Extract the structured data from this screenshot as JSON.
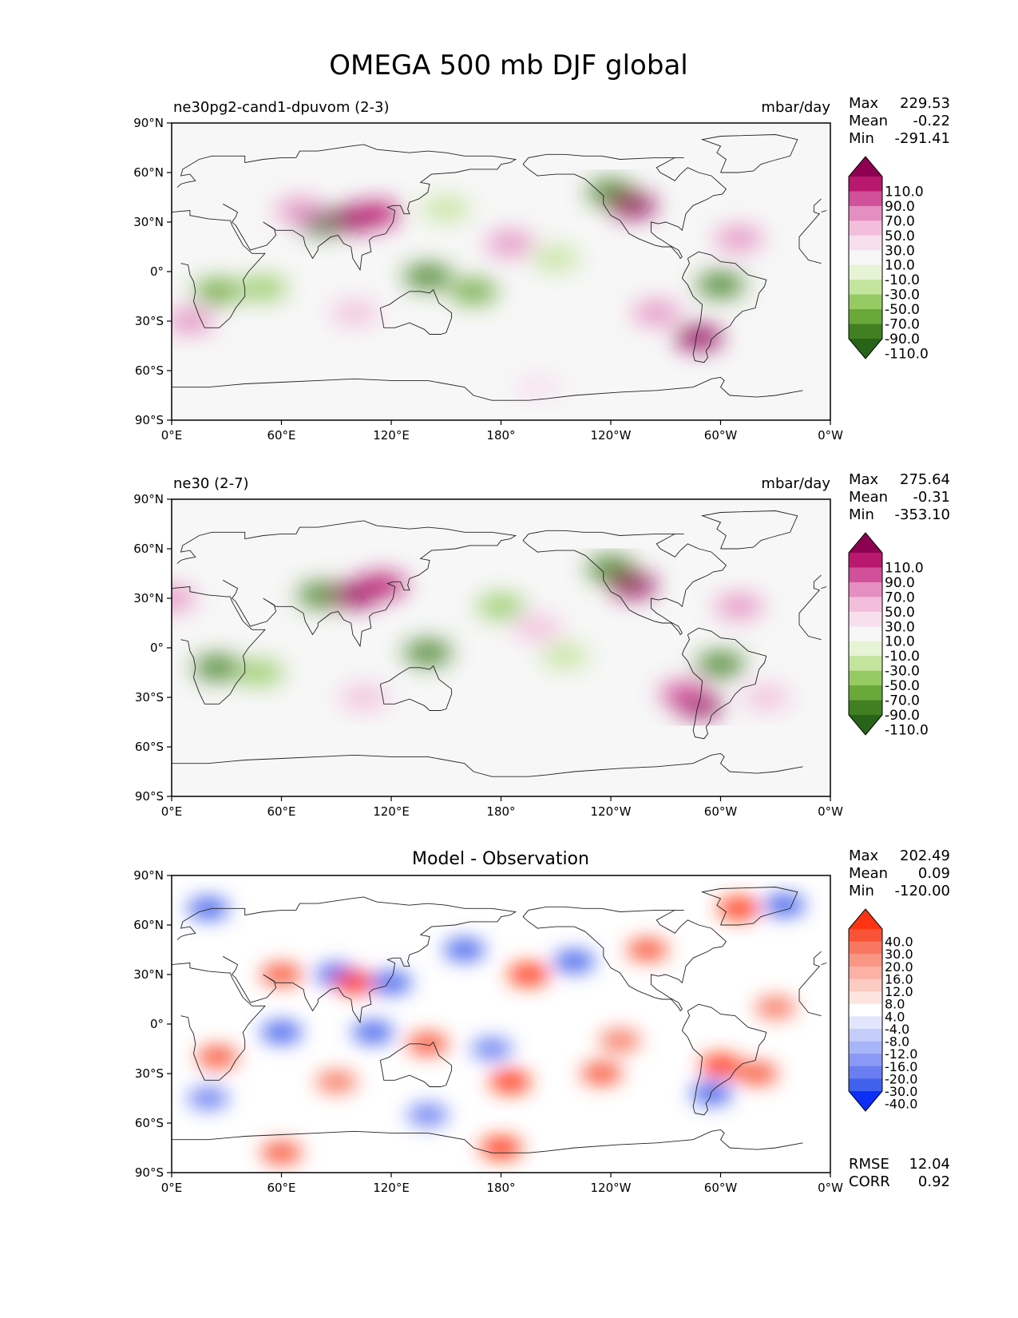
{
  "title": "OMEGA 500 mb DJF global",
  "chart_data": [
    {
      "type": "heatmap",
      "subtitle_left": "ne30pg2-cand1-dpuvom (2-3)",
      "subtitle_right": "mbar/day",
      "stats": [
        {
          "label": "Max",
          "value": "229.53"
        },
        {
          "label": "Mean",
          "value": "-0.22"
        },
        {
          "label": "Min",
          "value": "-291.41"
        }
      ],
      "colorbar": {
        "levels": [
          "110.0",
          "90.0",
          "70.0",
          "50.0",
          "30.0",
          "10.0",
          "-10.0",
          "-30.0",
          "-50.0",
          "-70.0",
          "-90.0",
          "-110.0"
        ],
        "colors": [
          "#8e0152",
          "#b8186d",
          "#d0509a",
          "#e58ec2",
          "#f2bedc",
          "#f8dfee",
          "#f7f7f7",
          "#e6f3d4",
          "#c3e49c",
          "#95cb62",
          "#6aa83a",
          "#427f22",
          "#276419"
        ]
      },
      "xlim": [
        0,
        360
      ],
      "ylim": [
        -90,
        90
      ],
      "xticks": [
        "0°E",
        "60°E",
        "120°E",
        "180°",
        "120°W",
        "60°W",
        "0°W"
      ],
      "yticks": [
        "90°N",
        "60°N",
        "30°N",
        "0°",
        "30°S",
        "60°S",
        "90°S"
      ],
      "features": [
        {
          "lon": 82,
          "lat": 30,
          "value": -120
        },
        {
          "lon": 100,
          "lat": 32,
          "value": 130
        },
        {
          "lon": 112,
          "lat": 35,
          "value": 90
        },
        {
          "lon": 70,
          "lat": 37,
          "value": 60
        },
        {
          "lon": 25,
          "lat": -12,
          "value": -90
        },
        {
          "lon": 50,
          "lat": -10,
          "value": -70
        },
        {
          "lon": 140,
          "lat": -3,
          "value": -100
        },
        {
          "lon": 165,
          "lat": -12,
          "value": -80
        },
        {
          "lon": 240,
          "lat": 48,
          "value": -110
        },
        {
          "lon": 252,
          "lat": 40,
          "value": 110
        },
        {
          "lon": 300,
          "lat": -8,
          "value": -100
        },
        {
          "lon": 288,
          "lat": -40,
          "value": 150
        },
        {
          "lon": 185,
          "lat": 17,
          "value": 55
        },
        {
          "lon": 150,
          "lat": 38,
          "value": -50
        },
        {
          "lon": 10,
          "lat": -30,
          "value": 60
        },
        {
          "lon": 100,
          "lat": -25,
          "value": 40
        },
        {
          "lon": 265,
          "lat": -25,
          "value": 60
        },
        {
          "lon": 310,
          "lat": 20,
          "value": 60
        },
        {
          "lon": 210,
          "lat": 8,
          "value": -50
        },
        {
          "lon": 200,
          "lat": -70,
          "value": 25
        }
      ]
    },
    {
      "type": "heatmap",
      "subtitle_left": "ne30 (2-7)",
      "subtitle_right": "mbar/day",
      "stats": [
        {
          "label": "Max",
          "value": "275.64"
        },
        {
          "label": "Mean",
          "value": "-0.31"
        },
        {
          "label": "Min",
          "value": "-353.10"
        }
      ],
      "colorbar": {
        "levels": [
          "110.0",
          "90.0",
          "70.0",
          "50.0",
          "30.0",
          "10.0",
          "-10.0",
          "-30.0",
          "-50.0",
          "-70.0",
          "-90.0",
          "-110.0"
        ],
        "colors": [
          "#8e0152",
          "#b8186d",
          "#d0509a",
          "#e58ec2",
          "#f2bedc",
          "#f8dfee",
          "#f7f7f7",
          "#e6f3d4",
          "#c3e49c",
          "#95cb62",
          "#6aa83a",
          "#427f22",
          "#276419"
        ]
      },
      "xlim": [
        0,
        360
      ],
      "ylim": [
        -90,
        90
      ],
      "xticks": [
        "0°E",
        "60°E",
        "120°E",
        "180°",
        "120°W",
        "60°W",
        "0°W"
      ],
      "yticks": [
        "90°N",
        "60°N",
        "30°N",
        "0°",
        "30°S",
        "60°S",
        "90°S"
      ],
      "features": [
        {
          "lon": 82,
          "lat": 32,
          "value": -110
        },
        {
          "lon": 100,
          "lat": 32,
          "value": 140
        },
        {
          "lon": 115,
          "lat": 38,
          "value": 100
        },
        {
          "lon": 25,
          "lat": -12,
          "value": -100
        },
        {
          "lon": 48,
          "lat": -15,
          "value": -60
        },
        {
          "lon": 140,
          "lat": -3,
          "value": -110
        },
        {
          "lon": 240,
          "lat": 48,
          "value": -110
        },
        {
          "lon": 252,
          "lat": 38,
          "value": 120
        },
        {
          "lon": 300,
          "lat": -10,
          "value": -110
        },
        {
          "lon": 288,
          "lat": -35,
          "value": 120
        },
        {
          "lon": 280,
          "lat": -28,
          "value": 70
        },
        {
          "lon": 180,
          "lat": 25,
          "value": -60
        },
        {
          "lon": 200,
          "lat": 12,
          "value": 40
        },
        {
          "lon": 105,
          "lat": -30,
          "value": 40
        },
        {
          "lon": 325,
          "lat": -30,
          "value": 40
        },
        {
          "lon": 310,
          "lat": 25,
          "value": 60
        },
        {
          "lon": 215,
          "lat": -5,
          "value": -50
        },
        {
          "lon": 0,
          "lat": 30,
          "value": 50
        }
      ]
    },
    {
      "type": "heatmap",
      "title": "Model - Observation",
      "stats": [
        {
          "label": "Max",
          "value": "202.49"
        },
        {
          "label": "Mean",
          "value": "0.09"
        },
        {
          "label": "Min",
          "value": "-120.00"
        }
      ],
      "metrics": [
        {
          "label": "RMSE",
          "value": "12.04"
        },
        {
          "label": "CORR",
          "value": "0.92"
        }
      ],
      "colorbar": {
        "levels": [
          "40.0",
          "30.0",
          "20.0",
          "16.0",
          "12.0",
          "8.0",
          "4.0",
          "-4.0",
          "-8.0",
          "-12.0",
          "-16.0",
          "-20.0",
          "-30.0",
          "-40.0"
        ],
        "colors": [
          "#ff3311",
          "#f85237",
          "#f77760",
          "#fa9684",
          "#fbb1a3",
          "#fccbc2",
          "#fde4df",
          "#ffffff",
          "#e2e6fd",
          "#c5cefb",
          "#a8b4f8",
          "#8a99f5",
          "#6a7ef1",
          "#4160ec",
          "#0b2ff9"
        ]
      },
      "xlim": [
        0,
        360
      ],
      "ylim": [
        -90,
        90
      ],
      "xticks": [
        "0°E",
        "60°E",
        "120°E",
        "180°",
        "120°W",
        "60°W",
        "0°W"
      ],
      "yticks": [
        "90°N",
        "60°N",
        "30°N",
        "0°",
        "30°S",
        "60°S",
        "90°S"
      ],
      "features": [
        {
          "lon": 60,
          "lat": 30,
          "value": 35
        },
        {
          "lon": 90,
          "lat": 30,
          "value": -40
        },
        {
          "lon": 100,
          "lat": 25,
          "value": 40
        },
        {
          "lon": 120,
          "lat": 25,
          "value": -35
        },
        {
          "lon": 160,
          "lat": 45,
          "value": -40
        },
        {
          "lon": 195,
          "lat": 30,
          "value": 40
        },
        {
          "lon": 220,
          "lat": 38,
          "value": -40
        },
        {
          "lon": 260,
          "lat": 45,
          "value": 30
        },
        {
          "lon": 310,
          "lat": 70,
          "value": 40
        },
        {
          "lon": 335,
          "lat": 72,
          "value": -40
        },
        {
          "lon": 20,
          "lat": 70,
          "value": -35
        },
        {
          "lon": 60,
          "lat": -5,
          "value": -40
        },
        {
          "lon": 110,
          "lat": -5,
          "value": -35
        },
        {
          "lon": 175,
          "lat": -15,
          "value": -30
        },
        {
          "lon": 185,
          "lat": -35,
          "value": 40
        },
        {
          "lon": 140,
          "lat": -12,
          "value": 30
        },
        {
          "lon": 25,
          "lat": -20,
          "value": 30
        },
        {
          "lon": 300,
          "lat": -25,
          "value": 40
        },
        {
          "lon": 295,
          "lat": -42,
          "value": -40
        },
        {
          "lon": 320,
          "lat": -30,
          "value": 35
        },
        {
          "lon": 235,
          "lat": -30,
          "value": 30
        },
        {
          "lon": 180,
          "lat": -75,
          "value": 40
        },
        {
          "lon": 60,
          "lat": -78,
          "value": 30
        },
        {
          "lon": 140,
          "lat": -55,
          "value": -30
        },
        {
          "lon": 20,
          "lat": -45,
          "value": -25
        },
        {
          "lon": 330,
          "lat": 10,
          "value": 25
        },
        {
          "lon": 245,
          "lat": -10,
          "value": 25
        },
        {
          "lon": 90,
          "lat": -35,
          "value": 25
        }
      ]
    }
  ]
}
